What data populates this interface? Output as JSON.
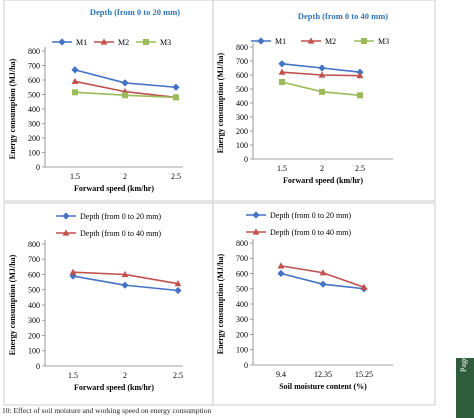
{
  "chart_data": [
    {
      "type": "line",
      "title": "Depth (from 0 to 20 mm)",
      "xlabel": "Forward speed (km/hr)",
      "ylabel": "Energy consumption (MJ/ha)",
      "categories": [
        "1.5",
        "2",
        "2.5"
      ],
      "ylim": [
        0,
        800
      ],
      "yticks": [
        0,
        100,
        200,
        300,
        400,
        500,
        600,
        700,
        800
      ],
      "legend": "top",
      "series": [
        {
          "name": "M1",
          "color": "#4472c4",
          "marker": "diamond",
          "values": [
            670,
            580,
            550
          ]
        },
        {
          "name": "M2",
          "color": "#c0504d",
          "marker": "triangle",
          "values": [
            590,
            520,
            480
          ]
        },
        {
          "name": "M3",
          "color": "#9bbb59",
          "marker": "square",
          "values": [
            515,
            495,
            480
          ]
        }
      ]
    },
    {
      "type": "line",
      "title": "Depth (from 0 to 40 mm)",
      "xlabel": "Forward speed (km/hr)",
      "ylabel": "Energy consumption (MJ/ha)",
      "categories": [
        "1.5",
        "2",
        "2.5"
      ],
      "ylim": [
        0,
        800
      ],
      "yticks": [
        0,
        100,
        200,
        300,
        400,
        500,
        600,
        700,
        800
      ],
      "legend": "top",
      "series": [
        {
          "name": "M1",
          "color": "#4472c4",
          "marker": "diamond",
          "values": [
            680,
            650,
            620
          ]
        },
        {
          "name": "M2",
          "color": "#c0504d",
          "marker": "triangle",
          "values": [
            620,
            600,
            595
          ]
        },
        {
          "name": "M3",
          "color": "#9bbb59",
          "marker": "square",
          "values": [
            550,
            480,
            455
          ]
        }
      ]
    },
    {
      "type": "line",
      "title": "",
      "xlabel": "Forward speed (km/hr)",
      "ylabel": "Energy consumption (MJ/ha)",
      "categories": [
        "1.5",
        "2",
        "2.5"
      ],
      "ylim": [
        0,
        800
      ],
      "yticks": [
        0,
        100,
        200,
        300,
        400,
        500,
        600,
        700,
        800
      ],
      "legend": "top",
      "series": [
        {
          "name": "Depth (from 0 to 20 mm)",
          "color": "#4472c4",
          "marker": "diamond",
          "values": [
            590,
            530,
            495
          ]
        },
        {
          "name": "Depth (from 0 to 40 mm)",
          "color": "#c0504d",
          "marker": "triangle",
          "values": [
            615,
            600,
            540
          ]
        }
      ]
    },
    {
      "type": "line",
      "title": "",
      "xlabel": "Soil moisture content (%)",
      "ylabel": "Energy consumption (MJ/ha)",
      "categories": [
        "9.4",
        "12.35",
        "15.25"
      ],
      "ylim": [
        0,
        800
      ],
      "yticks": [
        0,
        100,
        200,
        300,
        400,
        500,
        600,
        700,
        800
      ],
      "legend": "top",
      "series": [
        {
          "name": "Depth (from 0 to 20 mm)",
          "color": "#4472c4",
          "marker": "diamond",
          "values": [
            600,
            530,
            500
          ]
        },
        {
          "name": "Depth (from 0 to 40 mm)",
          "color": "#c0504d",
          "marker": "triangle",
          "values": [
            650,
            605,
            510
          ]
        }
      ]
    }
  ],
  "caption": "10: Effect of soil moisture and working speed on energy consumption",
  "page_label": "Page 39"
}
